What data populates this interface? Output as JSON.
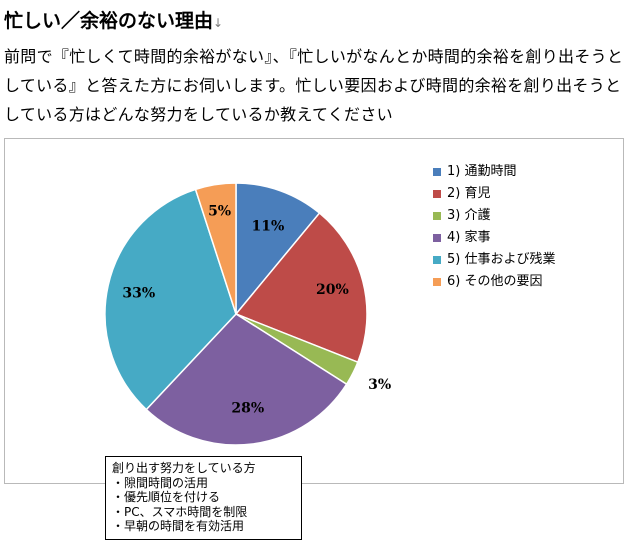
{
  "heading": "忙しい／余裕のない理由",
  "paragraph_mark": "↓",
  "intro": "前問で『忙しくて時間的余裕がない』、『忙しいがなんとか時間的余裕を創り出そうとしている』と答えた方にお伺いします。忙しい要因および時間的余裕を創り出そうとしている方はどんな努力をしているか教えてください",
  "chart_data": {
    "type": "pie",
    "start_angle": "12 o'clock",
    "direction": "clockwise",
    "legend_position": "right",
    "categories": [
      "1) 通勤時間",
      "2) 育児",
      "3) 介護",
      "4) 家事",
      "5) 仕事および残業",
      "6) その他の要因"
    ],
    "values": [
      11,
      20,
      3,
      28,
      33,
      5
    ],
    "labels": [
      "11%",
      "20%",
      "3%",
      "28%",
      "33%",
      "5%"
    ],
    "colors": [
      "#4a7ebb",
      "#be4b48",
      "#98b954",
      "#7d60a0",
      "#46aac5",
      "#f59d56"
    ]
  },
  "effort_box": {
    "title": "創り出す努力をしている方",
    "items": [
      "・隙間時間の活用",
      "・優先順位を付ける",
      "・PC、スマホ時間を制限",
      "・早朝の時間を有効活用"
    ]
  }
}
